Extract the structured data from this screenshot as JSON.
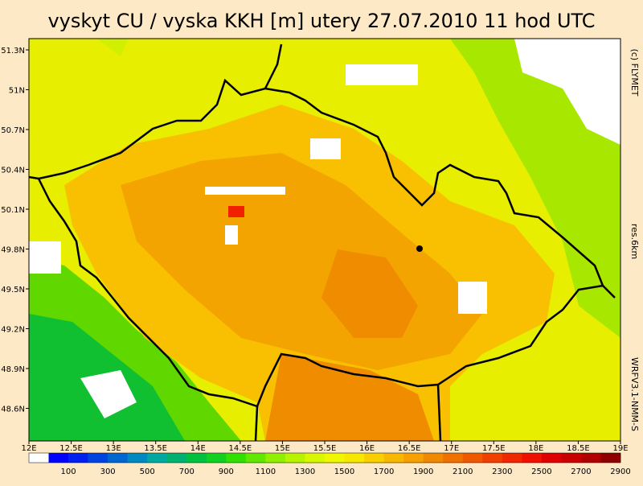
{
  "header": {
    "title": "vyskyt CU / vyska KKH [m] utery 27.07.2010 11 hod UTC"
  },
  "side_texts": [
    "(c) FLYMET",
    "res.6km",
    "WRFV3.1-NMM-S"
  ],
  "axes": {
    "latitudes": [
      "51.3N",
      "51N",
      "50.7N",
      "50.4N",
      "50.1N",
      "49.8N",
      "49.5N",
      "49.2N",
      "48.9N",
      "48.6N"
    ],
    "longitudes": [
      "12E",
      "12.5E",
      "13E",
      "13.5E",
      "14E",
      "14.5E",
      "15E",
      "15.5E",
      "16E",
      "16.5E",
      "17E",
      "17.5E",
      "18E",
      "18.5E",
      "19E"
    ]
  },
  "legend": {
    "labels": [
      "100",
      "300",
      "500",
      "700",
      "900",
      "1100",
      "1300",
      "1500",
      "1700",
      "1900",
      "2100",
      "2300",
      "2500",
      "2700",
      "2900"
    ],
    "colors": [
      "#ffffff",
      "#0000ff",
      "#0020f0",
      "#0044e0",
      "#0066d0",
      "#0088c0",
      "#00a8a0",
      "#00b070",
      "#00c040",
      "#10d020",
      "#30e000",
      "#60e800",
      "#90f000",
      "#b8f400",
      "#d8f800",
      "#f0f800",
      "#f8e800",
      "#f8d000",
      "#f8b800",
      "#f8a000",
      "#f08800",
      "#f07000",
      "#f05800",
      "#f04000",
      "#f02800",
      "#f01000",
      "#e00000",
      "#c80000",
      "#b00000",
      "#900000"
    ]
  }
}
